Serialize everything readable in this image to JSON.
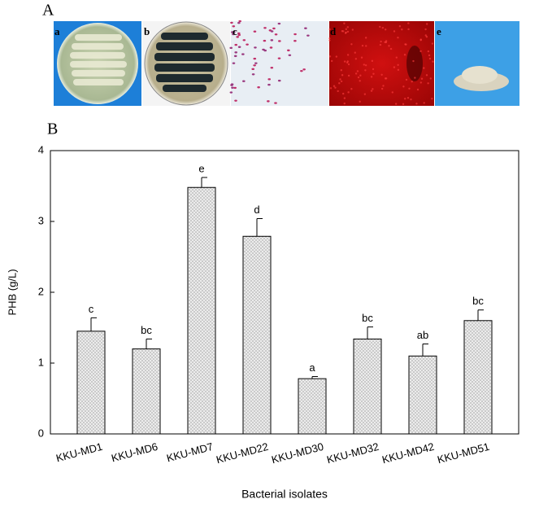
{
  "panel_a": {
    "label": "A",
    "images": [
      "a",
      "b",
      "c",
      "d",
      "e"
    ]
  },
  "chart_data": {
    "type": "bar",
    "panel_label": "B",
    "x_label": "Bacterial isolates",
    "y_label": "PHB (g/L)",
    "categories": [
      "KKU-MD1",
      "KKU-MD6",
      "KKU-MD7",
      "KKU-MD22",
      "KKU-MD30",
      "KKU-MD32",
      "KKU-MD42",
      "KKU-MD51"
    ],
    "values": [
      1.45,
      1.2,
      3.48,
      2.79,
      0.78,
      1.34,
      1.1,
      1.6
    ],
    "errors": [
      0.19,
      0.14,
      0.14,
      0.25,
      0.03,
      0.17,
      0.17,
      0.15
    ],
    "letters": [
      "c",
      "bc",
      "e",
      "d",
      "a",
      "bc",
      "ab",
      "bc"
    ],
    "color": "#e6e6e6",
    "ylim": [
      0,
      4
    ],
    "yticks": [
      0,
      1,
      2,
      3,
      4
    ]
  }
}
